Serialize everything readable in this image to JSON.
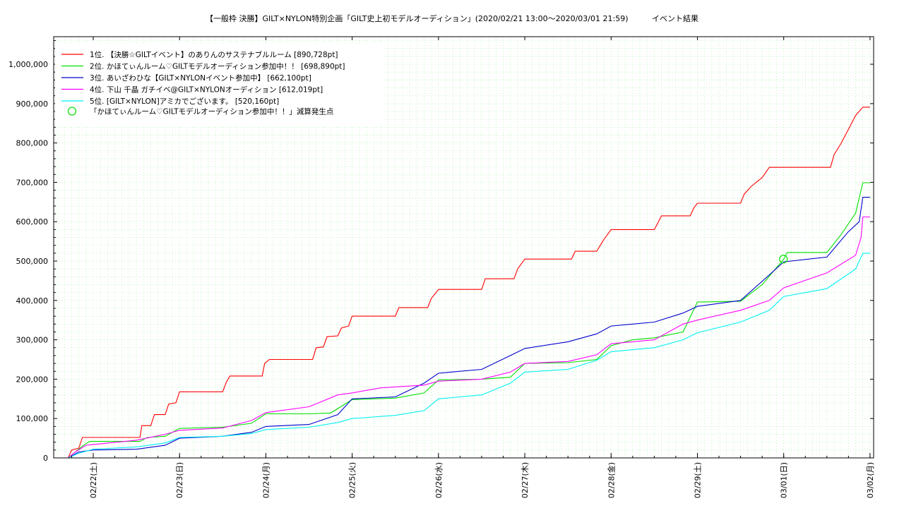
{
  "chart_data": {
    "type": "line",
    "title": "【一般枠 決勝】GILT×NYLON特別企画「GILT史上初モデルオーディション」(2020/02/21 13:00〜2020/03/01 21:59)",
    "subtitle": "イベント結果",
    "ylim": [
      0,
      1070000
    ],
    "y_ticks": [
      0,
      100000,
      200000,
      300000,
      400000,
      500000,
      600000,
      700000,
      800000,
      900000,
      1000000
    ],
    "y_tick_labels": [
      "0",
      "100,000",
      "200,000",
      "300,000",
      "400,000",
      "500,000",
      "600,000",
      "700,000",
      "800,000",
      "900,000",
      "1,000,000"
    ],
    "x_range": [
      "2020-02-21 13:00",
      "2020-03-02 01:00"
    ],
    "x_ticks": [
      "2020-02-22",
      "2020-02-23",
      "2020-02-24",
      "2020-02-25",
      "2020-02-26",
      "2020-02-27",
      "2020-02-28",
      "2020-02-29",
      "2020-03-01",
      "2020-03-02"
    ],
    "x_tick_labels": [
      "02/22(土)",
      "02/23(日)",
      "02/24(月)",
      "02/25(火)",
      "02/26(水)",
      "02/27(木)",
      "02/28(金)",
      "02/29(土)",
      "03/01(日)",
      "03/02(月)"
    ],
    "grid": true,
    "legend_position": "top-left",
    "series": [
      {
        "name": "1位. 【決勝☆GILTイベント】のありんのサステナブルルーム [890,728pt]",
        "color": "#ff0000",
        "points": [
          [
            "2020-02-21 13:00",
            0
          ],
          [
            "2020-02-21 17:00",
            0
          ],
          [
            "2020-02-21 18:00",
            20000
          ],
          [
            "2020-02-21 20:00",
            25000
          ],
          [
            "2020-02-21 21:00",
            52000
          ],
          [
            "2020-02-22 13:00",
            52000
          ],
          [
            "2020-02-22 13:30",
            82000
          ],
          [
            "2020-02-22 16:00",
            82000
          ],
          [
            "2020-02-22 17:00",
            110000
          ],
          [
            "2020-02-22 20:00",
            110000
          ],
          [
            "2020-02-22 21:00",
            137000
          ],
          [
            "2020-02-22 23:00",
            140000
          ],
          [
            "2020-02-23 00:00",
            168000
          ],
          [
            "2020-02-23 12:00",
            168000
          ],
          [
            "2020-02-23 13:00",
            192000
          ],
          [
            "2020-02-23 14:00",
            208000
          ],
          [
            "2020-02-23 23:00",
            208000
          ],
          [
            "2020-02-23 23:40",
            240000
          ],
          [
            "2020-02-24 01:00",
            250000
          ],
          [
            "2020-02-24 13:00",
            250000
          ],
          [
            "2020-02-24 14:00",
            280000
          ],
          [
            "2020-02-24 16:00",
            282000
          ],
          [
            "2020-02-24 17:00",
            308000
          ],
          [
            "2020-02-24 20:00",
            310000
          ],
          [
            "2020-02-24 21:00",
            330000
          ],
          [
            "2020-02-24 23:00",
            335000
          ],
          [
            "2020-02-25 00:00",
            360000
          ],
          [
            "2020-02-25 12:00",
            360000
          ],
          [
            "2020-02-25 13:00",
            382000
          ],
          [
            "2020-02-25 21:00",
            382000
          ],
          [
            "2020-02-25 22:00",
            405000
          ],
          [
            "2020-02-26 00:00",
            428000
          ],
          [
            "2020-02-26 12:00",
            428000
          ],
          [
            "2020-02-26 13:00",
            455000
          ],
          [
            "2020-02-26 21:00",
            455000
          ],
          [
            "2020-02-26 22:00",
            480000
          ],
          [
            "2020-02-27 00:00",
            505000
          ],
          [
            "2020-02-27 13:00",
            505000
          ],
          [
            "2020-02-27 14:00",
            525000
          ],
          [
            "2020-02-27 20:00",
            525000
          ],
          [
            "2020-02-27 21:00",
            540000
          ],
          [
            "2020-02-27 22:00",
            555000
          ],
          [
            "2020-02-28 00:00",
            580000
          ],
          [
            "2020-02-28 12:00",
            580000
          ],
          [
            "2020-02-28 13:00",
            597000
          ],
          [
            "2020-02-28 14:00",
            615000
          ],
          [
            "2020-02-28 22:00",
            615000
          ],
          [
            "2020-02-28 23:00",
            635000
          ],
          [
            "2020-02-29 00:00",
            647000
          ],
          [
            "2020-02-29 12:00",
            647000
          ],
          [
            "2020-02-29 13:00",
            670000
          ],
          [
            "2020-02-29 15:00",
            690000
          ],
          [
            "2020-02-29 18:00",
            712000
          ],
          [
            "2020-02-29 20:00",
            738000
          ],
          [
            "2020-03-01 13:00",
            738000
          ],
          [
            "2020-03-01 14:00",
            770000
          ],
          [
            "2020-03-01 16:00",
            800000
          ],
          [
            "2020-03-01 18:00",
            835000
          ],
          [
            "2020-03-01 20:00",
            870000
          ],
          [
            "2020-03-01 22:00",
            891000
          ],
          [
            "2020-03-02 00:00",
            891000
          ]
        ]
      },
      {
        "name": "2位. かほてぃんルーム♡GILTモデルオーディション参加中！！ [698,890pt]",
        "color": "#00e000",
        "points": [
          [
            "2020-02-21 13:00",
            0
          ],
          [
            "2020-02-21 17:00",
            0
          ],
          [
            "2020-02-21 19:00",
            15000
          ],
          [
            "2020-02-21 21:00",
            30000
          ],
          [
            "2020-02-21 23:00",
            42000
          ],
          [
            "2020-02-22 13:00",
            42000
          ],
          [
            "2020-02-22 15:00",
            52000
          ],
          [
            "2020-02-22 20:00",
            55000
          ],
          [
            "2020-02-23 00:00",
            75000
          ],
          [
            "2020-02-23 12:00",
            78000
          ],
          [
            "2020-02-23 20:00",
            88000
          ],
          [
            "2020-02-24 00:00",
            112000
          ],
          [
            "2020-02-24 12:00",
            112000
          ],
          [
            "2020-02-24 18:00",
            114000
          ],
          [
            "2020-02-25 00:00",
            148000
          ],
          [
            "2020-02-25 12:00",
            152000
          ],
          [
            "2020-02-25 20:00",
            165000
          ],
          [
            "2020-02-26 00:00",
            198000
          ],
          [
            "2020-02-26 12:00",
            200000
          ],
          [
            "2020-02-26 20:00",
            205000
          ],
          [
            "2020-02-27 00:00",
            240000
          ],
          [
            "2020-02-27 12:00",
            242000
          ],
          [
            "2020-02-27 20:00",
            250000
          ],
          [
            "2020-02-28 00:00",
            285000
          ],
          [
            "2020-02-28 06:00",
            300000
          ],
          [
            "2020-02-28 12:00",
            305000
          ],
          [
            "2020-02-28 20:00",
            320000
          ],
          [
            "2020-02-29 00:00",
            396000
          ],
          [
            "2020-02-29 12:00",
            398000
          ],
          [
            "2020-02-29 18:00",
            440000
          ],
          [
            "2020-03-01 00:00",
            505000
          ],
          [
            "2020-03-01 01:00",
            522000
          ],
          [
            "2020-03-01 12:00",
            522000
          ],
          [
            "2020-03-01 16:00",
            568000
          ],
          [
            "2020-03-01 20:00",
            622000
          ],
          [
            "2020-03-01 22:00",
            699000
          ],
          [
            "2020-03-02 00:00",
            699000
          ]
        ]
      },
      {
        "name": "3位. あいざわひな【GILT×NYLONイベント参加中】 [662,100pt]",
        "color": "#0000cc",
        "points": [
          [
            "2020-02-21 13:00",
            0
          ],
          [
            "2020-02-21 17:00",
            0
          ],
          [
            "2020-02-21 20:00",
            15000
          ],
          [
            "2020-02-22 00:00",
            20000
          ],
          [
            "2020-02-22 12:00",
            22000
          ],
          [
            "2020-02-22 20:00",
            32000
          ],
          [
            "2020-02-23 00:00",
            50000
          ],
          [
            "2020-02-23 12:00",
            55000
          ],
          [
            "2020-02-23 20:00",
            65000
          ],
          [
            "2020-02-24 00:00",
            80000
          ],
          [
            "2020-02-24 12:00",
            85000
          ],
          [
            "2020-02-24 20:00",
            110000
          ],
          [
            "2020-02-25 00:00",
            150000
          ],
          [
            "2020-02-25 12:00",
            155000
          ],
          [
            "2020-02-25 20:00",
            190000
          ],
          [
            "2020-02-26 00:00",
            215000
          ],
          [
            "2020-02-26 12:00",
            225000
          ],
          [
            "2020-02-26 20:00",
            260000
          ],
          [
            "2020-02-27 00:00",
            278000
          ],
          [
            "2020-02-27 12:00",
            295000
          ],
          [
            "2020-02-27 20:00",
            315000
          ],
          [
            "2020-02-28 00:00",
            335000
          ],
          [
            "2020-02-28 12:00",
            345000
          ],
          [
            "2020-02-28 20:00",
            368000
          ],
          [
            "2020-02-29 00:00",
            385000
          ],
          [
            "2020-02-29 12:00",
            400000
          ],
          [
            "2020-02-29 20:00",
            465000
          ],
          [
            "2020-03-01 00:00",
            498000
          ],
          [
            "2020-03-01 12:00",
            510000
          ],
          [
            "2020-03-01 18:00",
            575000
          ],
          [
            "2020-03-01 21:00",
            600000
          ],
          [
            "2020-03-01 22:00",
            662000
          ],
          [
            "2020-03-02 00:00",
            662000
          ]
        ]
      },
      {
        "name": "4位. 下山 千晶 ガチイベ@GILT×NYLONオーディション [612,019pt]",
        "color": "#ff00ff",
        "points": [
          [
            "2020-02-21 13:00",
            0
          ],
          [
            "2020-02-21 17:00",
            0
          ],
          [
            "2020-02-21 19:00",
            15000
          ],
          [
            "2020-02-21 22:00",
            32000
          ],
          [
            "2020-02-22 12:00",
            45000
          ],
          [
            "2020-02-22 20:00",
            60000
          ],
          [
            "2020-02-23 00:00",
            70000
          ],
          [
            "2020-02-23 12:00",
            76000
          ],
          [
            "2020-02-23 20:00",
            95000
          ],
          [
            "2020-02-24 00:00",
            115000
          ],
          [
            "2020-02-24 12:00",
            130000
          ],
          [
            "2020-02-24 20:00",
            160000
          ],
          [
            "2020-02-25 00:00",
            165000
          ],
          [
            "2020-02-25 08:00",
            178000
          ],
          [
            "2020-02-25 20:00",
            185000
          ],
          [
            "2020-02-26 00:00",
            195000
          ],
          [
            "2020-02-26 12:00",
            200000
          ],
          [
            "2020-02-26 20:00",
            218000
          ],
          [
            "2020-02-27 00:00",
            240000
          ],
          [
            "2020-02-27 12:00",
            245000
          ],
          [
            "2020-02-27 20:00",
            262000
          ],
          [
            "2020-02-28 00:00",
            290000
          ],
          [
            "2020-02-28 12:00",
            300000
          ],
          [
            "2020-02-28 20:00",
            340000
          ],
          [
            "2020-02-29 00:00",
            350000
          ],
          [
            "2020-02-29 12:00",
            375000
          ],
          [
            "2020-02-29 20:00",
            400000
          ],
          [
            "2020-03-01 00:00",
            432000
          ],
          [
            "2020-03-01 12:00",
            470000
          ],
          [
            "2020-03-01 20:00",
            515000
          ],
          [
            "2020-03-01 21:30",
            560000
          ],
          [
            "2020-03-01 22:00",
            612000
          ],
          [
            "2020-03-02 00:00",
            612000
          ]
        ]
      },
      {
        "name": "5位. [GILT×NYLON]アミカでございます。 [520,160pt]",
        "color": "#00f0f0",
        "points": [
          [
            "2020-02-21 13:00",
            0
          ],
          [
            "2020-02-21 17:00",
            0
          ],
          [
            "2020-02-21 20:00",
            12000
          ],
          [
            "2020-02-22 00:00",
            22000
          ],
          [
            "2020-02-22 12:00",
            28000
          ],
          [
            "2020-02-22 20:00",
            38000
          ],
          [
            "2020-02-23 00:00",
            52000
          ],
          [
            "2020-02-23 12:00",
            55000
          ],
          [
            "2020-02-23 20:00",
            62000
          ],
          [
            "2020-02-24 00:00",
            72000
          ],
          [
            "2020-02-24 12:00",
            78000
          ],
          [
            "2020-02-24 20:00",
            90000
          ],
          [
            "2020-02-25 00:00",
            100000
          ],
          [
            "2020-02-25 12:00",
            108000
          ],
          [
            "2020-02-25 20:00",
            120000
          ],
          [
            "2020-02-26 00:00",
            150000
          ],
          [
            "2020-02-26 12:00",
            160000
          ],
          [
            "2020-02-26 20:00",
            190000
          ],
          [
            "2020-02-27 00:00",
            218000
          ],
          [
            "2020-02-27 12:00",
            225000
          ],
          [
            "2020-02-27 20:00",
            248000
          ],
          [
            "2020-02-28 00:00",
            270000
          ],
          [
            "2020-02-28 12:00",
            280000
          ],
          [
            "2020-02-28 20:00",
            300000
          ],
          [
            "2020-02-29 00:00",
            318000
          ],
          [
            "2020-02-29 12:00",
            345000
          ],
          [
            "2020-02-29 20:00",
            375000
          ],
          [
            "2020-03-01 00:00",
            410000
          ],
          [
            "2020-03-01 12:00",
            430000
          ],
          [
            "2020-03-01 20:00",
            480000
          ],
          [
            "2020-03-01 22:00",
            520000
          ],
          [
            "2020-03-02 00:00",
            520000
          ]
        ]
      }
    ],
    "markers": [
      {
        "name": "「かほてぃんルーム♡GILTモデルオーディション参加中！！」減算発生点",
        "color": "#00e000",
        "x": "2020-02-29 23:55",
        "y": 505000
      }
    ]
  }
}
